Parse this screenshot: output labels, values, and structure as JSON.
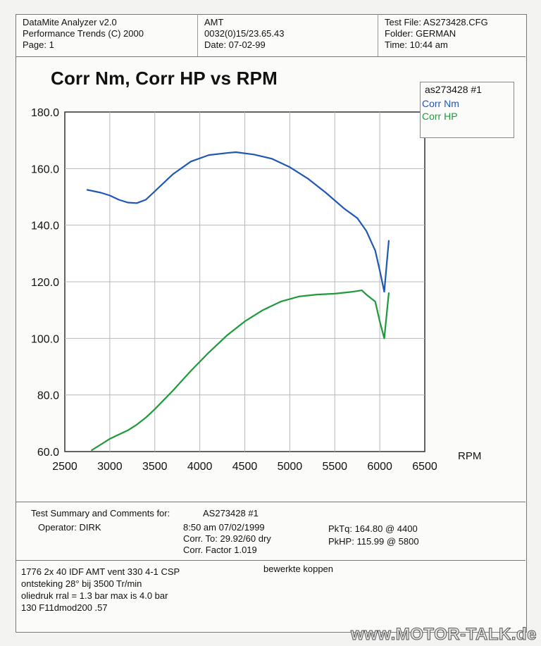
{
  "header": {
    "app_name": "DataMite Analyzer v2.0",
    "vendor_line": "Performance Trends (C) 2000",
    "page_line": "Page:  1",
    "engine_code": "AMT",
    "run_id": "0032(0)15/23.65.43",
    "date_line": "Date: 07-02-99",
    "test_file": "Test File: AS273428.CFG",
    "folder": "Folder: GERMAN",
    "time": "Time: 10:44 am"
  },
  "chart_data": {
    "type": "line",
    "title": "Corr Nm, Corr HP vs RPM",
    "xlabel": "RPM",
    "ylabel": "",
    "xlim": [
      2500,
      6500
    ],
    "ylim": [
      60,
      180
    ],
    "x_ticks": [
      "2500",
      "3000",
      "3500",
      "4000",
      "4500",
      "5000",
      "5500",
      "6000",
      "6500"
    ],
    "y_ticks": [
      "60.0",
      "80.0",
      "100.0",
      "120.0",
      "140.0",
      "160.0",
      "180.0"
    ],
    "grid": true,
    "legend_position": "top-right",
    "legend_title": "as273428  #1",
    "colors": {
      "nm": "#1f57b5",
      "hp": "#1f9a3a"
    },
    "series": [
      {
        "name": "Corr Nm",
        "x": [
          2750,
          2900,
          3000,
          3100,
          3200,
          3300,
          3400,
          3500,
          3700,
          3900,
          4100,
          4300,
          4400,
          4600,
          4800,
          5000,
          5200,
          5400,
          5600,
          5750,
          5850,
          5950,
          6000,
          6050,
          6100
        ],
        "y": [
          152.5,
          151.5,
          150.5,
          149.0,
          148.0,
          147.8,
          149.0,
          152.0,
          158.0,
          162.5,
          164.8,
          165.5,
          165.8,
          165.0,
          163.5,
          160.5,
          156.5,
          151.5,
          146.0,
          142.5,
          138.0,
          131.0,
          124.0,
          116.5,
          134.5
        ]
      },
      {
        "name": "Corr HP",
        "x": [
          2800,
          2900,
          3000,
          3100,
          3200,
          3300,
          3400,
          3500,
          3700,
          3900,
          4100,
          4300,
          4500,
          4700,
          4900,
          5100,
          5300,
          5500,
          5700,
          5800,
          5850,
          5950,
          6000,
          6050,
          6100
        ],
        "y": [
          60.5,
          62.5,
          64.5,
          66.0,
          67.5,
          69.5,
          72.0,
          75.0,
          81.5,
          88.5,
          95.0,
          101.0,
          106.0,
          110.0,
          113.0,
          114.8,
          115.5,
          115.8,
          116.5,
          117.0,
          115.5,
          113.0,
          106.0,
          100.0,
          116.0
        ]
      }
    ]
  },
  "summary": {
    "heading": "Test Summary and Comments for:",
    "run_name": "AS273428  #1",
    "operator": "Operator: DIRK",
    "datetime": "8:50 am 07/02/1999",
    "corr_to": "Corr. To: 29.92/60 dry",
    "corr_factor": "Corr. Factor 1.019",
    "peak_tq": "PkTq: 164.80 @  4400",
    "peak_hp": "PkHP: 115.99 @  5800"
  },
  "notes": {
    "line1": "1776 2x  40 IDF AMT vent 330  4-1 CSP",
    "line2": "ontsteking 28° bij 3500 Tr/min",
    "line3": "oliedruk rral = 1.3 bar max is 4.0 bar",
    "line4": "130 F11dmod200 .57",
    "side_note": "bewerkte koppen"
  },
  "watermark": "www.MOTOR-TALK.de"
}
